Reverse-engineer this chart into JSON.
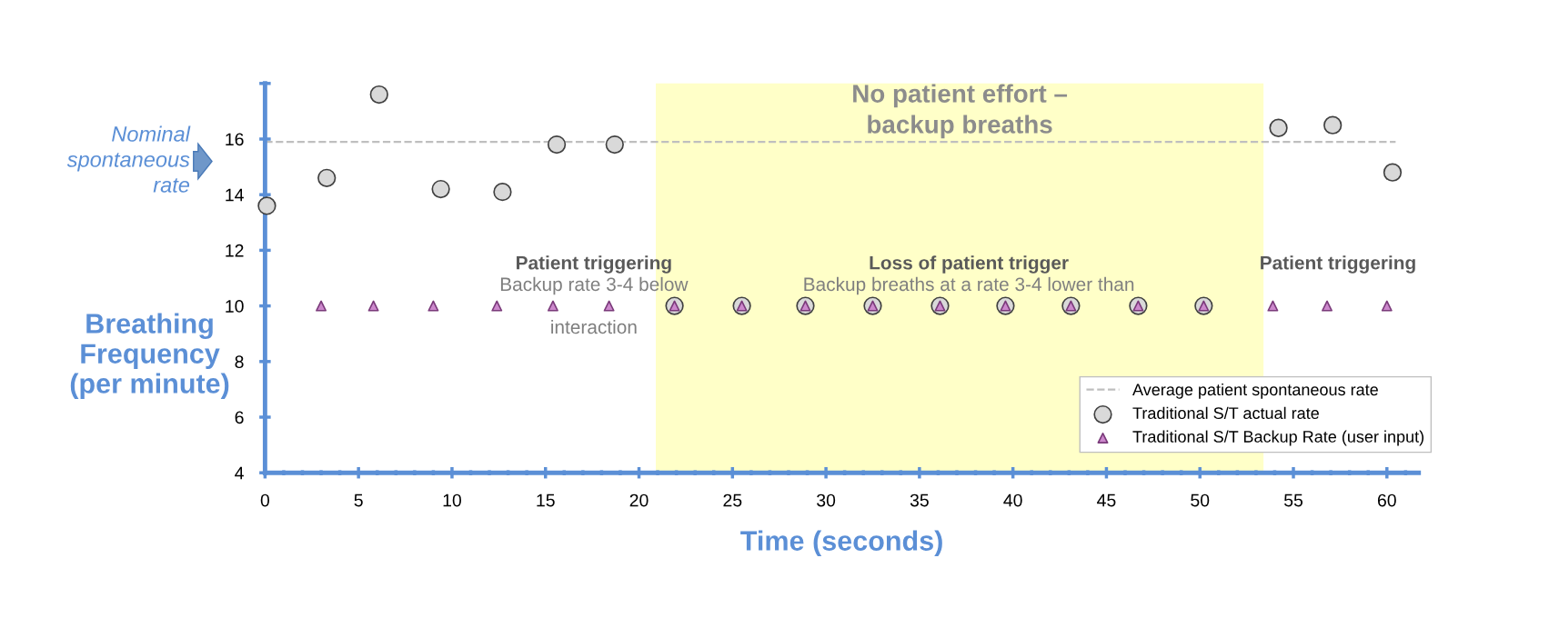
{
  "chart_data": {
    "type": "scatter",
    "xlabel": "Time (seconds)",
    "ylabel": "Breathing\nFrequency\n(per minute)",
    "xlim": [
      0,
      61.7
    ],
    "ylim": [
      4,
      18
    ],
    "xticks": [
      0,
      5,
      10,
      15,
      20,
      25,
      30,
      35,
      40,
      45,
      50,
      55,
      60
    ],
    "yticks": [
      4,
      6,
      8,
      10,
      12,
      14,
      16,
      {
        "value": 18,
        "label": null
      }
    ],
    "grid": false,
    "legend": "bottom right",
    "series": [
      {
        "name": "Traditional S/T actual rate",
        "color": "#d9d9d9",
        "marker": "circle",
        "x": [
          0.1,
          3.3,
          6.1,
          9.4,
          12.7,
          15.6,
          18.7,
          21.9,
          25.5,
          28.9,
          32.5,
          36.1,
          39.6,
          43.1,
          46.7,
          50.2,
          54.2,
          57.1,
          60.3
        ],
        "values": [
          13.6,
          14.6,
          17.6,
          14.2,
          14.1,
          15.8,
          15.8,
          10,
          10,
          10,
          10,
          10,
          10,
          10,
          10,
          10,
          16.4,
          16.5,
          14.8
        ]
      },
      {
        "name": "Traditional S/T Backup Rate (user input)",
        "color": "#cc88cc",
        "marker": "triangle",
        "x": [
          3.0,
          5.8,
          9.0,
          12.4,
          15.4,
          18.4,
          21.9,
          25.5,
          28.9,
          32.5,
          36.1,
          39.6,
          43.1,
          46.7,
          50.2,
          53.9,
          56.8,
          60.0
        ],
        "values": [
          10,
          10,
          10,
          10,
          10,
          10,
          10,
          10,
          10,
          10,
          10,
          10,
          10,
          10,
          10,
          10,
          10,
          10
        ]
      }
    ],
    "ref_lines": [
      {
        "axis": "y",
        "value": 15.9,
        "label": "Average patient spontaneous rate",
        "color": "#bfbfbf",
        "line_style": "dashed"
      }
    ],
    "bands": [
      {
        "axis": "x",
        "from": 20.9,
        "to": 53.4,
        "label": "No patient effort –\nbackup breaths",
        "color": "#ffffc8"
      }
    ],
    "annotations": [
      "Nominal\nspontaneous\nrate",
      "Patient triggering",
      "Backup rate 3-4 below",
      "interaction",
      "Loss of patient trigger",
      "Backup breaths at a rate 3-4 lower than",
      "Patient triggering"
    ]
  }
}
